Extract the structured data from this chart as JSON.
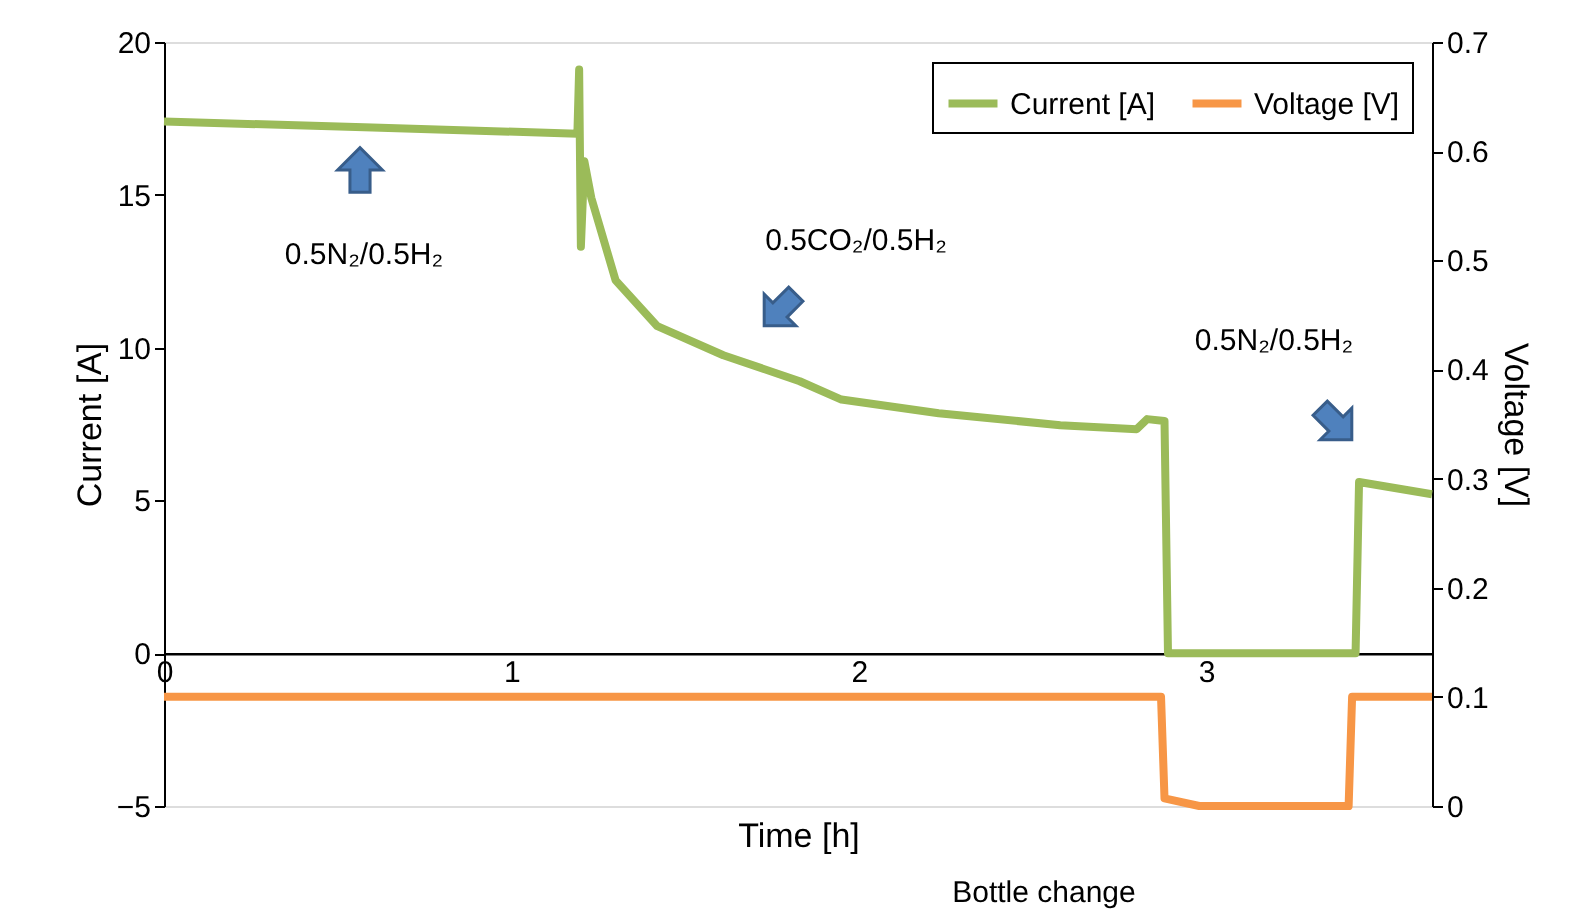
{
  "chart_data": {
    "type": "line",
    "xlabel": "Time [h]",
    "ylabel": "Current [A]",
    "y2label": "Voltage [V]",
    "xlim": [
      0,
      3.65
    ],
    "xticks": [
      0,
      1,
      2,
      3
    ],
    "ylim": [
      -5,
      20
    ],
    "yticks": [
      -5,
      0,
      5,
      10,
      15,
      20
    ],
    "y2lim": [
      0,
      0.7
    ],
    "y2ticks": [
      0,
      0.1,
      0.2,
      0.3,
      0.4,
      0.5,
      0.6,
      0.7
    ],
    "series": [
      {
        "name": "Current [A]",
        "color": "#9bbb59",
        "x": [
          0,
          0.6,
          1.19,
          1.195,
          1.2,
          1.21,
          1.23,
          1.3,
          1.42,
          1.61,
          1.83,
          1.95,
          2.23,
          2.58,
          2.8,
          2.83,
          2.88,
          2.89,
          3.43,
          3.44,
          3.65
        ],
        "values": [
          17.4,
          17.2,
          17.0,
          19.1,
          13.3,
          16.1,
          14.9,
          12.2,
          10.7,
          9.75,
          8.9,
          8.3,
          7.85,
          7.46,
          7.33,
          7.66,
          7.6,
          0,
          0,
          5.6,
          5.2
        ]
      },
      {
        "name": "Voltage [V]",
        "color": "#f79646",
        "axis": "y2",
        "x": [
          0,
          2.73,
          2.87,
          2.88,
          2.98,
          3.41,
          3.42,
          3.65
        ],
        "values": [
          0.1,
          0.1,
          0.1,
          0.007,
          0.0,
          0.0,
          0.1,
          0.1
        ]
      }
    ],
    "annotations": [
      "0.5N₂/0.5H₂",
      "0.5CO₂/0.5H₂",
      "0.5N₂/0.5H₂",
      "Bottle change"
    ],
    "legend": "top right",
    "grid": false,
    "marker": "none",
    "line_style": "solid"
  }
}
